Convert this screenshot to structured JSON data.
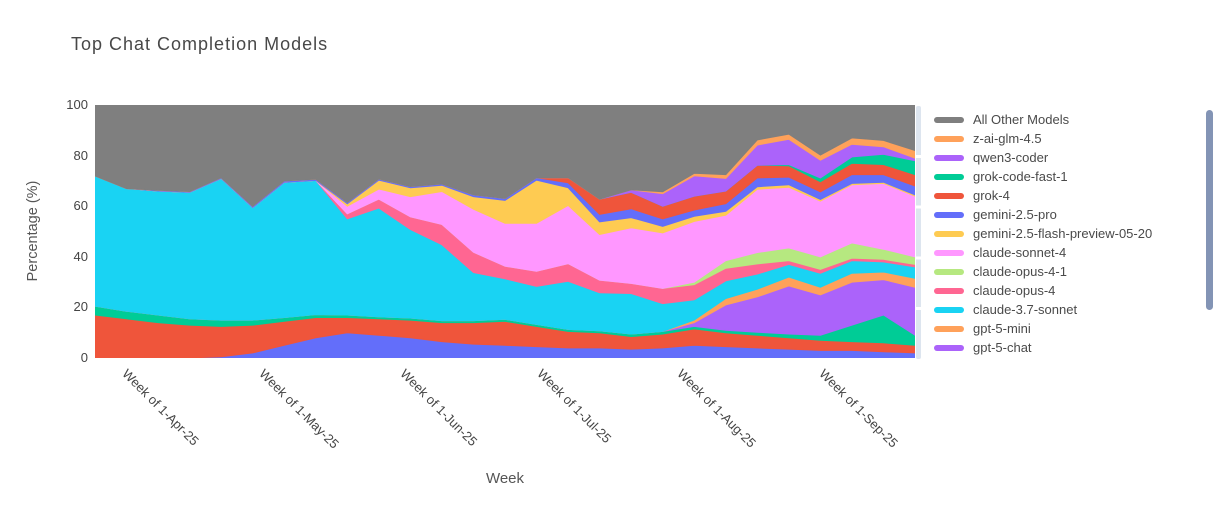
{
  "chart_data": {
    "type": "area",
    "stacked": true,
    "title": "Top Chat Completion Models",
    "xlabel": "Week",
    "ylabel": "Percentage (%)",
    "ylim": [
      0,
      100
    ],
    "y_ticks": [
      0,
      20,
      40,
      60,
      80,
      100
    ],
    "x_ticks": [
      {
        "label": "Week of 1-Apr-25",
        "pos": 0.043
      },
      {
        "label": "Week of 1-May-25",
        "pos": 0.21
      },
      {
        "label": "Week of 1-Jun-25",
        "pos": 0.382
      },
      {
        "label": "Week of 1-Jul-25",
        "pos": 0.549
      },
      {
        "label": "Week of 1-Aug-25",
        "pos": 0.72
      },
      {
        "label": "Week of 1-Sep-25",
        "pos": 0.893
      }
    ],
    "n_points": 27,
    "grid": false,
    "legend_position": "right",
    "legend_scrollable": true,
    "series_bottom_to_top": [
      {
        "name": "unlabeled-1",
        "color": "#636EFA",
        "legend_visible": false,
        "values": [
          0,
          0,
          0,
          0,
          0.5,
          2,
          5,
          8,
          10,
          9,
          8,
          6.5,
          5.5,
          5,
          4.5,
          4,
          4,
          3.5,
          4,
          5,
          4.5,
          4,
          3.5,
          3,
          3,
          2.5,
          2
        ]
      },
      {
        "name": "unlabeled-2",
        "color": "#EF553B",
        "legend_visible": false,
        "values": [
          17,
          15.5,
          14,
          13,
          12,
          11,
          9.5,
          8,
          6,
          6.5,
          7,
          7.5,
          8.5,
          9.5,
          8,
          6.5,
          6,
          5,
          5.5,
          6.5,
          5.5,
          5,
          4.5,
          4,
          3.5,
          3.5,
          3
        ]
      },
      {
        "name": "unlabeled-3",
        "color": "#00CC96",
        "legend_visible": false,
        "values": [
          3.5,
          3,
          3,
          2.5,
          2.5,
          2,
          1.5,
          1.2,
          1,
          0.8,
          0.8,
          0.8,
          0.8,
          0.8,
          0.8,
          0.8,
          0.8,
          1,
          1,
          1,
          1,
          1.2,
          1.5,
          2,
          6.5,
          11,
          4
        ]
      },
      {
        "name": "gpt-5-chat",
        "color": "#AB63FA",
        "legend_visible": true,
        "values": [
          0,
          0,
          0,
          0,
          0,
          0,
          0,
          0,
          0,
          0,
          0,
          0,
          0,
          0,
          0,
          0,
          0,
          0,
          0,
          1.5,
          10,
          14,
          19,
          16,
          17,
          14,
          19
        ]
      },
      {
        "name": "gpt-5-mini",
        "color": "#FFA15A",
        "legend_visible": true,
        "values": [
          0,
          0,
          0,
          0,
          0,
          0,
          0,
          0,
          0,
          0,
          0,
          0,
          0,
          0,
          0,
          0,
          0,
          0,
          0,
          1,
          2.5,
          3,
          3.5,
          3,
          3.5,
          3,
          3.5
        ]
      },
      {
        "name": "claude-3.7-sonnet",
        "color": "#19D3F3",
        "legend_visible": true,
        "values": [
          51.5,
          48.5,
          49,
          50,
          56,
          44.5,
          53.5,
          53,
          38,
          43,
          35,
          30,
          19,
          16,
          15,
          19,
          15,
          16,
          11,
          8,
          7,
          6,
          5,
          5.5,
          5,
          4,
          4.5
        ]
      },
      {
        "name": "claude-opus-4",
        "color": "#FF6692",
        "legend_visible": true,
        "values": [
          0,
          0,
          0,
          0,
          0,
          0,
          0,
          0,
          2,
          3.5,
          5,
          8,
          8,
          5,
          6,
          7,
          5,
          4,
          6,
          6,
          5,
          4,
          1.5,
          1.5,
          1,
          1,
          1
        ]
      },
      {
        "name": "claude-opus-4-1",
        "color": "#B6E880",
        "legend_visible": true,
        "values": [
          0,
          0,
          0,
          0,
          0,
          0,
          0,
          0,
          0,
          0,
          0,
          0,
          0,
          0,
          0,
          0,
          0,
          0,
          0,
          1,
          3,
          4.5,
          5,
          5,
          6,
          4,
          3
        ]
      },
      {
        "name": "claude-sonnet-4",
        "color": "#FF97FF",
        "legend_visible": true,
        "values": [
          0,
          0,
          0,
          0,
          0,
          0,
          0,
          0,
          3,
          4,
          8,
          13,
          17,
          17,
          19,
          23,
          18,
          22,
          22,
          24,
          18,
          25,
          24,
          22,
          23,
          26,
          24
        ]
      },
      {
        "name": "gemini-2.5-flash-preview-05-20",
        "color": "#FECB52",
        "legend_visible": true,
        "values": [
          0,
          0,
          0,
          0,
          0,
          0,
          0,
          0,
          1,
          3.5,
          3.5,
          2.5,
          5,
          9,
          17,
          7,
          5,
          4,
          2.5,
          2,
          1.5,
          1,
          1,
          0.7,
          0.5,
          0.5,
          0.5
        ]
      },
      {
        "name": "gemini-2.5-pro",
        "color": "#636EFA",
        "legend_visible": true,
        "values": [
          0,
          0,
          0.3,
          0.3,
          0.3,
          0.5,
          0.5,
          0.5,
          0.5,
          0.5,
          0.5,
          0.5,
          0.7,
          0.8,
          1,
          2,
          3,
          3.5,
          3,
          2.5,
          3,
          3.5,
          3,
          3,
          3.5,
          3,
          3.5
        ]
      },
      {
        "name": "grok-4",
        "color": "#EF553B",
        "legend_visible": true,
        "values": [
          0,
          0,
          0,
          0,
          0,
          0,
          0,
          0,
          0,
          0,
          0,
          0,
          0,
          0,
          0,
          2,
          6,
          6.5,
          5,
          5.5,
          5,
          5,
          4.5,
          4,
          4.5,
          4,
          4.5
        ]
      },
      {
        "name": "grok-code-fast-1",
        "color": "#00CC96",
        "legend_visible": true,
        "values": [
          0,
          0,
          0,
          0,
          0,
          0,
          0,
          0,
          0,
          0,
          0,
          0,
          0,
          0,
          0,
          0,
          0,
          0,
          0,
          0,
          0,
          0,
          0.5,
          1.5,
          2.5,
          4,
          5.5
        ]
      },
      {
        "name": "qwen3-coder",
        "color": "#AB63FA",
        "legend_visible": true,
        "values": [
          0,
          0,
          0,
          0,
          0,
          0,
          0,
          0,
          0,
          0,
          0,
          0,
          0,
          0,
          0,
          0,
          0,
          1,
          5,
          8,
          5,
          8,
          10,
          7,
          5,
          3,
          1
        ]
      },
      {
        "name": "z-ai-glm-4.5",
        "color": "#FFA15A",
        "legend_visible": true,
        "values": [
          0,
          0,
          0,
          0,
          0,
          0,
          0,
          0,
          0,
          0,
          0,
          0,
          0,
          0,
          0,
          0,
          0,
          0,
          0.7,
          1,
          1.5,
          2,
          2,
          2,
          2.5,
          2.5,
          3
        ]
      },
      {
        "name": "All Other Models",
        "color": "#7F7F7F",
        "legend_visible": true,
        "values": [
          28,
          33,
          33.7,
          34.2,
          28.7,
          40,
          30,
          29.3,
          38.5,
          29.2,
          32.2,
          31.2,
          35.5,
          36.9,
          28.7,
          28.7,
          37.2,
          33.5,
          34.3,
          27,
          27.5,
          13.8,
          11.5,
          19.8,
          13,
          14,
          18
        ]
      }
    ]
  },
  "legend_items_top_to_bottom": [
    {
      "label": "All Other Models",
      "color": "#7F7F7F"
    },
    {
      "label": "z-ai-glm-4.5",
      "color": "#FFA15A"
    },
    {
      "label": "qwen3-coder",
      "color": "#AB63FA"
    },
    {
      "label": "grok-code-fast-1",
      "color": "#00CC96"
    },
    {
      "label": "grok-4",
      "color": "#EF553B"
    },
    {
      "label": "gemini-2.5-pro",
      "color": "#636EFA"
    },
    {
      "label": "gemini-2.5-flash-preview-05-20",
      "color": "#FECB52"
    },
    {
      "label": "claude-sonnet-4",
      "color": "#FF97FF"
    },
    {
      "label": "claude-opus-4-1",
      "color": "#B6E880"
    },
    {
      "label": "claude-opus-4",
      "color": "#FF6692"
    },
    {
      "label": "claude-3.7-sonnet",
      "color": "#19D3F3"
    },
    {
      "label": "gpt-5-mini",
      "color": "#FFA15A"
    },
    {
      "label": "gpt-5-chat",
      "color": "#AB63FA"
    }
  ],
  "scrollbar_color": "#8394B5"
}
